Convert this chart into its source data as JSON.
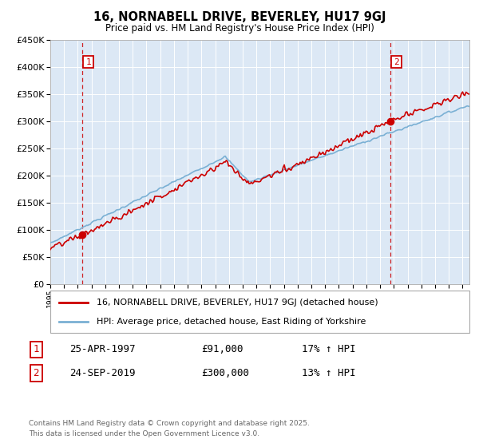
{
  "title": "16, NORNABELL DRIVE, BEVERLEY, HU17 9GJ",
  "subtitle": "Price paid vs. HM Land Registry's House Price Index (HPI)",
  "legend_line1": "16, NORNABELL DRIVE, BEVERLEY, HU17 9GJ (detached house)",
  "legend_line2": "HPI: Average price, detached house, East Riding of Yorkshire",
  "sale1_date": "25-APR-1997",
  "sale1_price": "£91,000",
  "sale1_hpi": "17% ↑ HPI",
  "sale1_year": 1997.32,
  "sale1_value": 91000,
  "sale2_date": "24-SEP-2019",
  "sale2_price": "£300,000",
  "sale2_hpi": "13% ↑ HPI",
  "sale2_year": 2019.73,
  "sale2_value": 300000,
  "hpi_color": "#7ab0d4",
  "price_color": "#cc0000",
  "marker_color": "#cc0000",
  "dashed_color": "#cc0000",
  "bg_color": "#dce8f5",
  "grid_color": "#ffffff",
  "footnote": "Contains HM Land Registry data © Crown copyright and database right 2025.\nThis data is licensed under the Open Government Licence v3.0.",
  "ylim": [
    0,
    450000
  ],
  "yticks": [
    0,
    50000,
    100000,
    150000,
    200000,
    250000,
    300000,
    350000,
    400000,
    450000
  ],
  "xlim_start": 1995.0,
  "xlim_end": 2025.5
}
